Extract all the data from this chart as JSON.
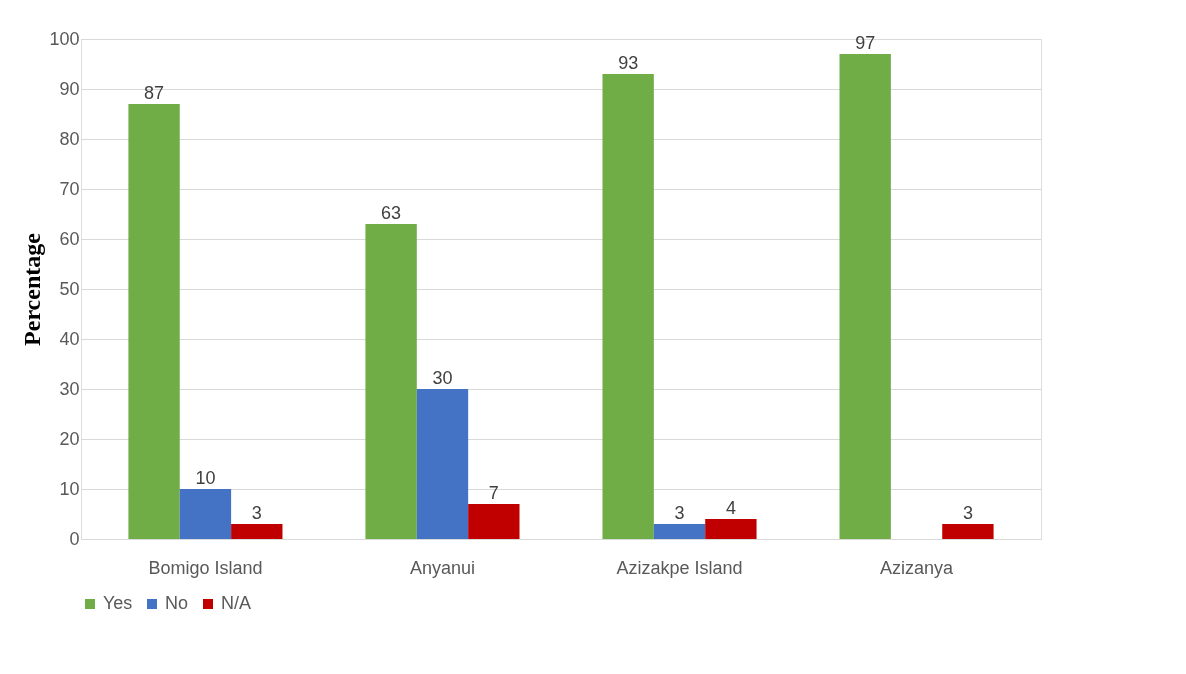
{
  "chart_data": {
    "type": "bar",
    "ylabel": "Percentage",
    "categories": [
      "Bomigo Island",
      "Anyanui",
      "Azizakpe Island",
      "Azizanya"
    ],
    "series": [
      {
        "name": "Yes",
        "color": "#70ad47",
        "values": [
          87,
          63,
          93,
          97
        ]
      },
      {
        "name": "No",
        "color": "#4472c4",
        "values": [
          10,
          30,
          3,
          null
        ]
      },
      {
        "name": "N/A",
        "color": "#c00000",
        "values": [
          3,
          7,
          4,
          3
        ]
      }
    ],
    "ylim": [
      0,
      100
    ],
    "yticks": [
      0,
      10,
      20,
      30,
      40,
      50,
      60,
      70,
      80,
      90,
      100
    ],
    "grid": "y",
    "legend": "bottom",
    "data_labels": true
  }
}
